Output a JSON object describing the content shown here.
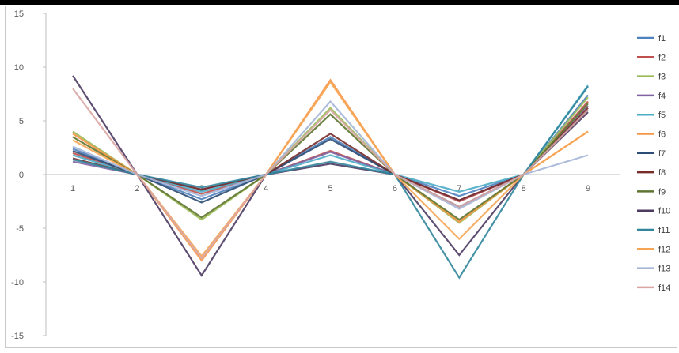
{
  "chart_data": {
    "type": "line",
    "title": "",
    "xlabel": "",
    "ylabel": "",
    "ylim": [
      -15,
      15
    ],
    "yticks": [
      15,
      10,
      5,
      0,
      -5,
      -10,
      -15
    ],
    "x": [
      1,
      2,
      3,
      4,
      5,
      6,
      7,
      8,
      9
    ],
    "x_tick_labels": [
      "1",
      "2",
      "3",
      "4",
      "5",
      "6",
      "7",
      "8",
      "9"
    ],
    "grid": false,
    "legend_position": "right",
    "series": [
      {
        "name": "f1",
        "color": "#4F81BD",
        "values": [
          2.4,
          0,
          -2.3,
          0,
          3.5,
          0,
          -2.0,
          0,
          7.4
        ]
      },
      {
        "name": "f2",
        "color": "#C0504D",
        "values": [
          2.0,
          0,
          -1.8,
          0,
          2.2,
          0,
          -2.5,
          0,
          6.8
        ]
      },
      {
        "name": "f3",
        "color": "#9BBB59",
        "values": [
          4.0,
          0,
          -4.2,
          0,
          6.2,
          0,
          -4.5,
          0,
          7.2
        ]
      },
      {
        "name": "f4",
        "color": "#8064A2",
        "values": [
          1.2,
          0,
          -1.4,
          0,
          2.1,
          0,
          -2.4,
          0,
          6.4
        ]
      },
      {
        "name": "f5",
        "color": "#4BACC6",
        "values": [
          1.8,
          0,
          -1.6,
          0,
          1.8,
          0,
          -1.6,
          0,
          8.3
        ]
      },
      {
        "name": "f6",
        "color": "#F79646",
        "values": [
          3.8,
          0,
          -8.0,
          0,
          8.8,
          0,
          -4.4,
          0,
          4.0
        ]
      },
      {
        "name": "f7",
        "color": "#2C4D75",
        "values": [
          2.2,
          0,
          -2.6,
          0,
          3.3,
          0,
          -3.0,
          0,
          6.0
        ]
      },
      {
        "name": "f8",
        "color": "#772C2A",
        "values": [
          1.5,
          0,
          -1.4,
          0,
          3.8,
          0,
          -2.4,
          0,
          6.2
        ]
      },
      {
        "name": "f9",
        "color": "#5F7530",
        "values": [
          3.5,
          0,
          -4.0,
          0,
          5.6,
          0,
          -4.2,
          0,
          6.6
        ]
      },
      {
        "name": "f10",
        "color": "#4D3B62",
        "values": [
          9.2,
          0,
          -9.4,
          0,
          1.0,
          0,
          -7.5,
          0,
          5.8
        ]
      },
      {
        "name": "f11",
        "color": "#31859C",
        "values": [
          1.4,
          0,
          -1.2,
          0,
          1.2,
          0,
          -9.6,
          0,
          8.2
        ]
      },
      {
        "name": "f12",
        "color": "#F6A554",
        "values": [
          3.2,
          0,
          -7.6,
          0,
          8.6,
          0,
          -6.0,
          0,
          4.0
        ]
      },
      {
        "name": "f13",
        "color": "#A5B6D8",
        "values": [
          2.6,
          0,
          -2.0,
          0,
          6.8,
          0,
          -3.2,
          0,
          1.8
        ]
      },
      {
        "name": "f14",
        "color": "#D9A6A4",
        "values": [
          8.0,
          0,
          -7.8,
          0,
          6.0,
          0,
          -3.0,
          0,
          6.0
        ]
      }
    ]
  }
}
